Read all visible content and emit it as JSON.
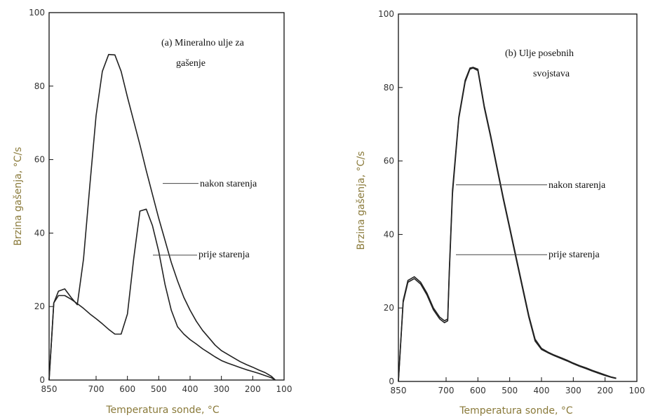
{
  "chart_data": [
    {
      "type": "line",
      "title": "(a) Mineralno ulje za gašenje",
      "title_lines": [
        "(a) Mineralno ulje za",
        "gašenje"
      ],
      "xlabel": "Temperatura sonde, °C",
      "ylabel": "Brzina gašenja, °C/s",
      "xlim": [
        850,
        100
      ],
      "ylim": [
        0,
        100
      ],
      "x_ticks": [
        850,
        700,
        600,
        500,
        400,
        300,
        200,
        100
      ],
      "y_ticks": [
        0,
        20,
        40,
        60,
        80,
        100
      ],
      "series": [
        {
          "name": "nakon starenja",
          "x": [
            850,
            835,
            820,
            800,
            780,
            760,
            740,
            720,
            700,
            680,
            660,
            640,
            620,
            600,
            580,
            560,
            540,
            520,
            500,
            480,
            460,
            440,
            420,
            400,
            380,
            360,
            340,
            320,
            300,
            280,
            260,
            240,
            220,
            200,
            180,
            160,
            140,
            128
          ],
          "y": [
            0,
            21,
            24.2,
            24.8,
            22.5,
            20.5,
            33,
            53,
            72,
            84,
            88.6,
            88.5,
            84,
            77,
            70.5,
            64,
            57,
            50.5,
            44,
            38,
            32,
            27,
            22.5,
            19,
            16,
            13.5,
            11.5,
            9.5,
            8,
            7,
            6,
            5,
            4.2,
            3.5,
            2.7,
            2,
            1,
            0
          ]
        },
        {
          "name": "prije starenja",
          "x": [
            850,
            835,
            820,
            800,
            780,
            760,
            740,
            720,
            700,
            680,
            660,
            640,
            620,
            600,
            580,
            560,
            540,
            520,
            500,
            480,
            460,
            440,
            420,
            400,
            380,
            360,
            340,
            320,
            300,
            280,
            260,
            240,
            220,
            200,
            180,
            160,
            140,
            128
          ],
          "y": [
            0,
            21,
            23,
            23,
            22,
            20.8,
            19.5,
            18,
            16.7,
            15.3,
            13.8,
            12.5,
            12.5,
            18,
            33,
            46,
            46.5,
            42,
            35,
            26,
            19,
            14.5,
            12.5,
            11,
            9.8,
            8.5,
            7.4,
            6.3,
            5.3,
            4.6,
            4,
            3.4,
            2.8,
            2.3,
            1.8,
            1.2,
            0.6,
            0
          ]
        }
      ],
      "labels": [
        "nakon starenja",
        "prije starenja"
      ]
    },
    {
      "type": "line",
      "title": "(b) Ulje posebnih svojstava",
      "title_lines": [
        "(b) Ulje posebnih",
        "svojstava"
      ],
      "xlabel": "Temperatura sonde, °C",
      "ylabel": "Brzina gašenja, °C/s",
      "xlim": [
        850,
        100
      ],
      "ylim": [
        0,
        100
      ],
      "x_ticks": [
        850,
        700,
        600,
        500,
        400,
        300,
        200,
        100
      ],
      "y_ticks": [
        0,
        20,
        40,
        60,
        80,
        100
      ],
      "series": [
        {
          "name": "nakon starenja",
          "x": [
            850,
            835,
            820,
            800,
            780,
            760,
            740,
            720,
            705,
            695,
            690,
            680,
            660,
            640,
            625,
            615,
            600,
            590,
            580,
            560,
            540,
            520,
            500,
            480,
            460,
            440,
            420,
            400,
            380,
            360,
            340,
            320,
            300,
            280,
            260,
            240,
            220,
            200,
            180,
            165
          ],
          "y": [
            0,
            22,
            27.5,
            28.5,
            27,
            24,
            20,
            17.5,
            16.5,
            17,
            30,
            52,
            72,
            82,
            85.3,
            85.5,
            85,
            80,
            75,
            67,
            58.5,
            50,
            42,
            34,
            26,
            18,
            11.5,
            9,
            8,
            7.2,
            6.5,
            5.8,
            5,
            4.3,
            3.7,
            3,
            2.4,
            1.8,
            1.2,
            0.9
          ]
        },
        {
          "name": "prije starenja",
          "x": [
            850,
            835,
            820,
            800,
            780,
            760,
            740,
            720,
            705,
            695,
            690,
            680,
            660,
            640,
            625,
            615,
            600,
            590,
            580,
            560,
            540,
            520,
            500,
            480,
            460,
            440,
            420,
            400,
            380,
            360,
            340,
            320,
            300,
            280,
            260,
            240,
            220,
            200,
            180,
            165
          ],
          "y": [
            0,
            21.5,
            27,
            28,
            26.5,
            23.5,
            19.5,
            17,
            16,
            16.5,
            29,
            51,
            71.5,
            81.5,
            85,
            85.3,
            84.6,
            79.5,
            74.5,
            66.5,
            58,
            49.5,
            41.5,
            33.5,
            25.5,
            17.5,
            11,
            8.7,
            7.8,
            7,
            6.3,
            5.6,
            4.8,
            4.1,
            3.5,
            2.8,
            2.2,
            1.6,
            1.1,
            0.8
          ]
        }
      ],
      "labels": [
        "nakon starenja",
        "prije starenja"
      ]
    }
  ]
}
